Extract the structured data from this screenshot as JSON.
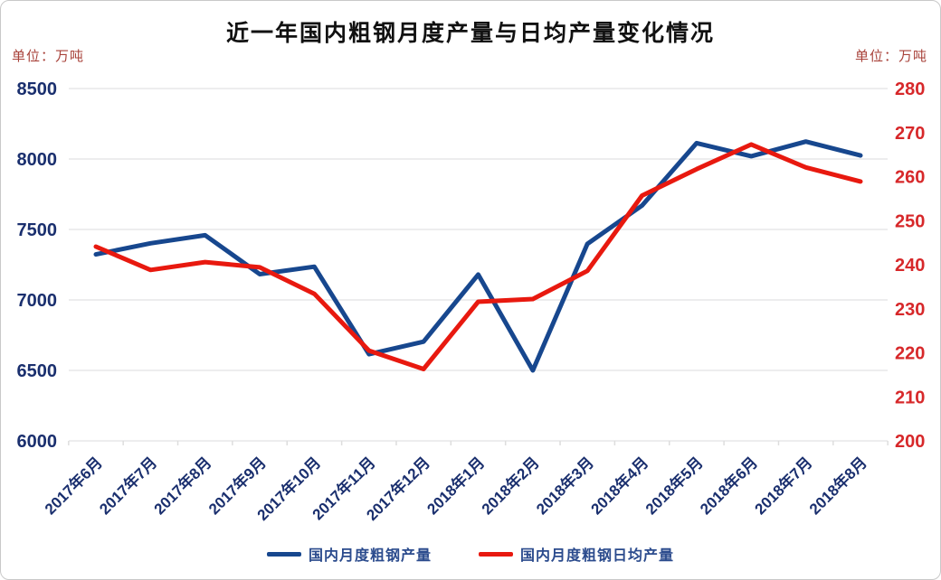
{
  "title": "近一年国内粗钢月度产量与日均产量变化情况",
  "chart_data": {
    "type": "line",
    "title": "近一年国内粗钢月度产量与日均产量变化情况",
    "categories": [
      "2017年6月",
      "2017年7月",
      "2017年8月",
      "2017年9月",
      "2017年10月",
      "2017年11月",
      "2017年12月",
      "2018年1月",
      "2018年2月",
      "2018年3月",
      "2018年4月",
      "2018年5月",
      "2018年6月",
      "2018年7月",
      "2018年8月"
    ],
    "series": [
      {
        "name": "国内月度粗钢产量",
        "axis": "left",
        "color": "#17478e",
        "values": [
          7323,
          7402,
          7459,
          7183,
          7236,
          6615,
          6704,
          7180,
          6500,
          7398,
          7670,
          8113,
          8020,
          8124,
          8025
        ]
      },
      {
        "name": "国内月度粗钢日均产量",
        "axis": "right",
        "color": "#e8190f",
        "values": [
          244.1,
          238.8,
          240.6,
          239.4,
          233.4,
          220.5,
          216.3,
          231.6,
          232.2,
          238.6,
          255.7,
          261.7,
          267.3,
          262.1,
          258.9
        ]
      }
    ],
    "left_axis": {
      "unit": "单位：万吨",
      "ticks": [
        8500,
        8000,
        7500,
        7000,
        6500,
        6000
      ],
      "ylim": [
        6000,
        8500
      ],
      "tick_color": "#1a2f6e"
    },
    "right_axis": {
      "unit": "单位：万吨",
      "ticks": [
        280,
        270,
        260,
        250,
        240,
        230,
        220,
        210,
        200
      ],
      "ylim": [
        200,
        280
      ],
      "tick_color": "#d7282a"
    },
    "grid": true,
    "grid_color": "#e7e7e9",
    "x_label_color": "#1a2f6e",
    "legend_position": "bottom"
  }
}
